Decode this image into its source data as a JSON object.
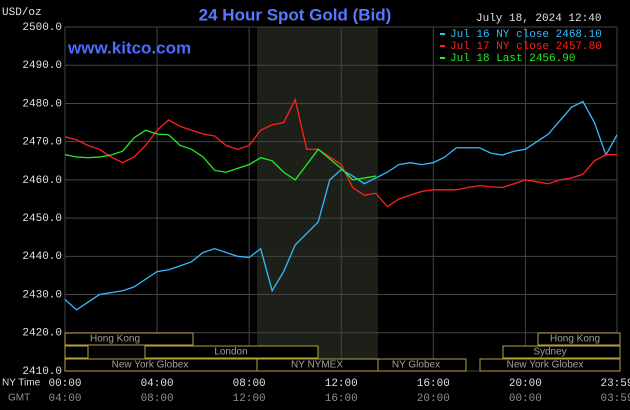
{
  "chart_data": {
    "type": "line",
    "title": "24 Hour Spot Gold (Bid)",
    "subtitle": "July 18, 2024 12:40",
    "watermark": "www.kitco.com",
    "y_label": "USD/oz",
    "x_label": "NY Time",
    "x2_label": "GMT",
    "x": [
      0,
      0.5,
      1,
      1.5,
      2,
      2.5,
      3,
      3.5,
      4,
      4.5,
      5,
      5.5,
      6,
      6.5,
      7,
      7.5,
      8,
      8.5,
      9,
      9.5,
      10,
      10.5,
      11,
      11.5,
      12,
      12.5,
      13,
      13.5,
      14,
      14.5,
      15,
      15.5,
      16,
      16.5,
      17,
      17.5,
      18,
      18.5,
      19,
      19.5,
      20,
      20.5,
      21,
      21.5,
      22,
      22.5,
      23,
      23.5,
      23.98
    ],
    "series": [
      {
        "name": "Jul 16 NY close 2468.10",
        "color": "#33bbff",
        "values": [
          2428.7,
          2426,
          2428,
          2430,
          2430.5,
          2431,
          2432,
          2434,
          2436,
          2436.5,
          2437.5,
          2438.6,
          2441,
          2442,
          2441,
          2440,
          2439.7,
          2442,
          2431,
          2436,
          2443,
          2446,
          2449,
          2460,
          2462.7,
          2461,
          2459,
          2460.5,
          2462,
          2464,
          2464.5,
          2464,
          2464.5,
          2466,
          2468.4,
          2468.4,
          2468.4,
          2467,
          2466.5,
          2467.5,
          2468,
          2470,
          2472,
          2475.5,
          2479,
          2480.5,
          2475,
          2466.5,
          2471.8
        ]
      },
      {
        "name": "Jul 17 NY close 2457.80",
        "color": "#ff2020",
        "values": [
          2471.3,
          2470.5,
          2469,
          2468,
          2466,
          2464.5,
          2466,
          2469,
          2473,
          2475.7,
          2474,
          2473,
          2472,
          2471.5,
          2469,
          2468,
          2469,
          2473,
          2474.4,
          2475,
          2481,
          2468,
          2468,
          2466,
          2464,
          2458,
          2456,
          2456.5,
          2453,
          2455,
          2456,
          2457,
          2457.4,
          2457.4,
          2457.4,
          2458,
          2458.5,
          2458.2,
          2458,
          2459,
          2460,
          2459.5,
          2459,
          2460,
          2460.5,
          2461.5,
          2465,
          2466.6,
          2466.6
        ]
      },
      {
        "name": "Jul 18 Last 2456.90",
        "color": "#22ee22",
        "values": [
          2466.6,
          2466,
          2465.8,
          2466,
          2466.5,
          2467.5,
          2471,
          2473,
          2472,
          2471.8,
          2469,
          2468,
          2466,
          2462.5,
          2462,
          2463,
          2464,
          2465.8,
          2465,
          2462,
          2460,
          2464,
          2468,
          2465.5,
          2463,
          2460,
          2460.5,
          2461,
          null,
          null,
          null,
          null,
          null,
          null,
          null,
          null,
          null,
          null,
          null,
          null,
          null,
          null,
          null,
          null,
          null,
          null,
          null,
          null,
          null
        ]
      }
    ],
    "xlim": [
      0,
      23.98
    ],
    "xticks": [
      {
        "value": 0,
        "label": "00:00"
      },
      {
        "value": 4,
        "label": "04:00"
      },
      {
        "value": 8,
        "label": "08:00"
      },
      {
        "value": 12,
        "label": "12:00"
      },
      {
        "value": 16,
        "label": "16:00"
      },
      {
        "value": 20,
        "label": "20:00"
      },
      {
        "value": 23.98,
        "label": "23:59"
      }
    ],
    "x2ticks": [
      {
        "value": 0,
        "label": "04:00"
      },
      {
        "value": 4,
        "label": "08:00"
      },
      {
        "value": 8,
        "label": "12:00"
      },
      {
        "value": 12,
        "label": "16:00"
      },
      {
        "value": 16,
        "label": "20:00"
      },
      {
        "value": 20,
        "label": "00:00"
      },
      {
        "value": 23.98,
        "label": "03:59"
      }
    ],
    "ylim": [
      2410,
      2500
    ],
    "yticks": [
      {
        "value": 2410,
        "label": "2410.0"
      },
      {
        "value": 2420,
        "label": "2420.0"
      },
      {
        "value": 2430,
        "label": "2430.0"
      },
      {
        "value": 2440,
        "label": "2440.0"
      },
      {
        "value": 2450,
        "label": "2450.0"
      },
      {
        "value": 2460,
        "label": "2460.0"
      },
      {
        "value": 2470,
        "label": "2470.0"
      },
      {
        "value": 2480,
        "label": "2480.0"
      },
      {
        "value": 2490,
        "label": "2490.0"
      },
      {
        "value": 2500,
        "label": "2500.0"
      }
    ],
    "grid": true,
    "legend": "top-right",
    "sessions": [
      "Hong Kong",
      "London",
      "New York Globex",
      "NY NYMEX",
      "NY Globex",
      "Hong Kong",
      "Sydney",
      "New York Globex"
    ]
  }
}
